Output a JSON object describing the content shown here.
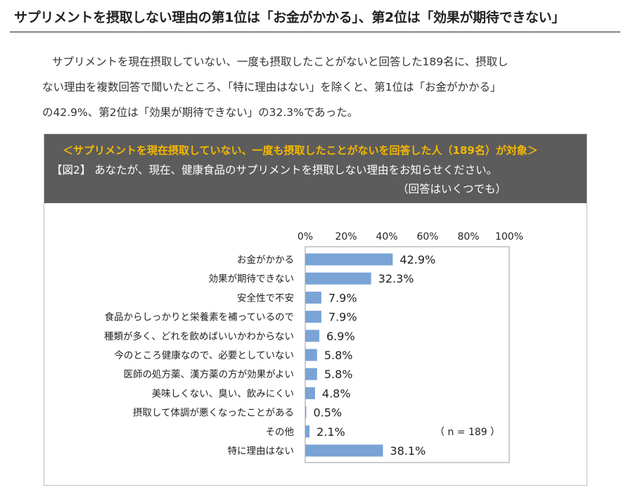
{
  "headline": "サプリメントを摂取しない理由の第1位は「お金がかかる」、第2位は「効果が期待できない」",
  "lead": [
    "サプリメントを現在摂取していない、一度も摂取したことがないと回答した189名に、摂取し",
    "ない理由を複数回答で聞いたところ、「特に理由はない」を除くと、第1位は「お金がかかる」",
    "の42.9%、第2位は「効果が期待できない」の32.3%であった。"
  ],
  "panel": {
    "subtitle": "＜サプリメントを現在摂取していない、一度も摂取したことがないを回答した人（189名）が対象＞",
    "question": "【図2】 あなたが、現在、健康食品のサプリメントを摂取しない理由をお知らせください。",
    "note": "（回答はいくつでも）"
  },
  "chart_data": {
    "type": "bar",
    "orientation": "horizontal",
    "categories": [
      "お金がかかる",
      "効果が期待できない",
      "安全性で不安",
      "食品からしっかりと栄養素を補っているので",
      "種類が多く、どれを飲めばいいかわからない",
      "今のところ健康なので、必要としていない",
      "医師の処方薬、漢方薬の方が効果がよい",
      "美味しくない、臭い、飲みにくい",
      "摂取して体調が悪くなったことがある",
      "その他",
      "特に理由はない"
    ],
    "values": [
      42.9,
      32.3,
      7.9,
      7.9,
      6.9,
      5.8,
      5.8,
      4.8,
      0.5,
      2.1,
      38.1
    ],
    "value_labels": [
      "42.9%",
      "32.3%",
      "7.9%",
      "7.9%",
      "6.9%",
      "5.8%",
      "5.8%",
      "4.8%",
      "0.5%",
      "2.1%",
      "38.1%"
    ],
    "xlim": [
      0,
      100
    ],
    "ticks": [
      "0%",
      "20%",
      "40%",
      "60%",
      "80%",
      "100%"
    ],
    "tick_values": [
      0,
      20,
      40,
      60,
      80,
      100
    ],
    "axis_position": "top",
    "bar_color": "#7aa3d6",
    "annotation": "（ n = 189 ）",
    "grid": false
  }
}
